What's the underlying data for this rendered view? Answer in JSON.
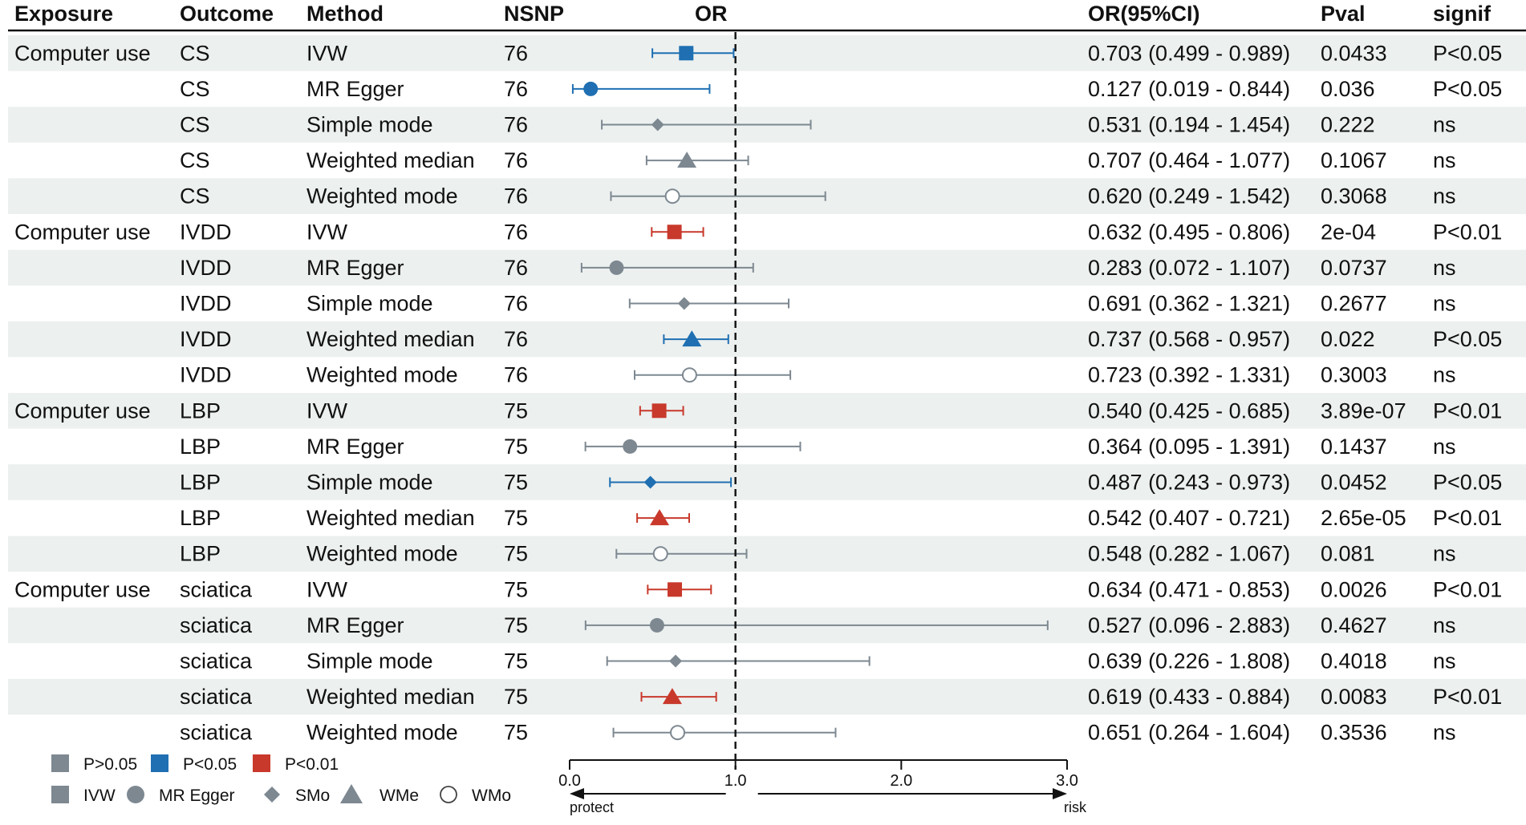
{
  "chart_data": {
    "type": "forest",
    "columns": [
      "Exposure",
      "Outcome",
      "Method",
      "NSNP",
      "OR",
      "OR(95%CI)",
      "Pval",
      "signif"
    ],
    "rows": [
      {
        "exposure": "Computer use",
        "outcome": "CS",
        "method": "IVW",
        "nsnp": "76",
        "or": 0.703,
        "lo": 0.499,
        "hi": 0.989,
        "ci_text": "0.703 (0.499 - 0.989)",
        "pval": "0.0433",
        "signif": "P<0.05",
        "sig_class": "p05",
        "shape": "square"
      },
      {
        "exposure": "",
        "outcome": "CS",
        "method": "MR Egger",
        "nsnp": "76",
        "or": 0.127,
        "lo": 0.019,
        "hi": 0.844,
        "ci_text": "0.127 (0.019 - 0.844)",
        "pval": "0.036",
        "signif": "P<0.05",
        "sig_class": "p05",
        "shape": "circle"
      },
      {
        "exposure": "",
        "outcome": "CS",
        "method": "Simple mode",
        "nsnp": "76",
        "or": 0.531,
        "lo": 0.194,
        "hi": 1.454,
        "ci_text": "0.531 (0.194 - 1.454)",
        "pval": "0.222",
        "signif": "ns",
        "sig_class": "ns",
        "shape": "diamond"
      },
      {
        "exposure": "",
        "outcome": "CS",
        "method": "Weighted median",
        "nsnp": "76",
        "or": 0.707,
        "lo": 0.464,
        "hi": 1.077,
        "ci_text": "0.707 (0.464 - 1.077)",
        "pval": "0.1067",
        "signif": "ns",
        "sig_class": "ns",
        "shape": "triangle"
      },
      {
        "exposure": "",
        "outcome": "CS",
        "method": "Weighted mode",
        "nsnp": "76",
        "or": 0.62,
        "lo": 0.249,
        "hi": 1.542,
        "ci_text": "0.620 (0.249 - 1.542)",
        "pval": "0.3068",
        "signif": "ns",
        "sig_class": "ns",
        "shape": "open-circle"
      },
      {
        "exposure": "Computer use",
        "outcome": "IVDD",
        "method": "IVW",
        "nsnp": "76",
        "or": 0.632,
        "lo": 0.495,
        "hi": 0.806,
        "ci_text": "0.632 (0.495 - 0.806)",
        "pval": "2e-04",
        "signif": "P<0.01",
        "sig_class": "p01",
        "shape": "square"
      },
      {
        "exposure": "",
        "outcome": "IVDD",
        "method": "MR Egger",
        "nsnp": "76",
        "or": 0.283,
        "lo": 0.072,
        "hi": 1.107,
        "ci_text": "0.283 (0.072 - 1.107)",
        "pval": "0.0737",
        "signif": "ns",
        "sig_class": "ns",
        "shape": "circle"
      },
      {
        "exposure": "",
        "outcome": "IVDD",
        "method": "Simple mode",
        "nsnp": "76",
        "or": 0.691,
        "lo": 0.362,
        "hi": 1.321,
        "ci_text": "0.691 (0.362 - 1.321)",
        "pval": "0.2677",
        "signif": "ns",
        "sig_class": "ns",
        "shape": "diamond"
      },
      {
        "exposure": "",
        "outcome": "IVDD",
        "method": "Weighted median",
        "nsnp": "76",
        "or": 0.737,
        "lo": 0.568,
        "hi": 0.957,
        "ci_text": "0.737 (0.568 - 0.957)",
        "pval": "0.022",
        "signif": "P<0.05",
        "sig_class": "p05",
        "shape": "triangle"
      },
      {
        "exposure": "",
        "outcome": "IVDD",
        "method": "Weighted mode",
        "nsnp": "76",
        "or": 0.723,
        "lo": 0.392,
        "hi": 1.331,
        "ci_text": "0.723 (0.392 - 1.331)",
        "pval": "0.3003",
        "signif": "ns",
        "sig_class": "ns",
        "shape": "open-circle"
      },
      {
        "exposure": "Computer use",
        "outcome": "LBP",
        "method": "IVW",
        "nsnp": "75",
        "or": 0.54,
        "lo": 0.425,
        "hi": 0.685,
        "ci_text": "0.540 (0.425 - 0.685)",
        "pval": "3.89e-07",
        "signif": "P<0.01",
        "sig_class": "p01",
        "shape": "square"
      },
      {
        "exposure": "",
        "outcome": "LBP",
        "method": "MR Egger",
        "nsnp": "75",
        "or": 0.364,
        "lo": 0.095,
        "hi": 1.391,
        "ci_text": "0.364 (0.095 - 1.391)",
        "pval": "0.1437",
        "signif": "ns",
        "sig_class": "ns",
        "shape": "circle"
      },
      {
        "exposure": "",
        "outcome": "LBP",
        "method": "Simple mode",
        "nsnp": "75",
        "or": 0.487,
        "lo": 0.243,
        "hi": 0.973,
        "ci_text": "0.487 (0.243 - 0.973)",
        "pval": "0.0452",
        "signif": "P<0.05",
        "sig_class": "p05",
        "shape": "diamond"
      },
      {
        "exposure": "",
        "outcome": "LBP",
        "method": "Weighted median",
        "nsnp": "75",
        "or": 0.542,
        "lo": 0.407,
        "hi": 0.721,
        "ci_text": "0.542 (0.407 - 0.721)",
        "pval": "2.65e-05",
        "signif": "P<0.01",
        "sig_class": "p01",
        "shape": "triangle"
      },
      {
        "exposure": "",
        "outcome": "LBP",
        "method": "Weighted mode",
        "nsnp": "75",
        "or": 0.548,
        "lo": 0.282,
        "hi": 1.067,
        "ci_text": "0.548 (0.282 - 1.067)",
        "pval": "0.081",
        "signif": "ns",
        "sig_class": "ns",
        "shape": "open-circle"
      },
      {
        "exposure": "Computer use",
        "outcome": "sciatica",
        "method": "IVW",
        "nsnp": "75",
        "or": 0.634,
        "lo": 0.471,
        "hi": 0.853,
        "ci_text": "0.634 (0.471 - 0.853)",
        "pval": "0.0026",
        "signif": "P<0.01",
        "sig_class": "p01",
        "shape": "square"
      },
      {
        "exposure": "",
        "outcome": "sciatica",
        "method": "MR Egger",
        "nsnp": "75",
        "or": 0.527,
        "lo": 0.096,
        "hi": 2.883,
        "ci_text": "0.527 (0.096 - 2.883)",
        "pval": "0.4627",
        "signif": "ns",
        "sig_class": "ns",
        "shape": "circle"
      },
      {
        "exposure": "",
        "outcome": "sciatica",
        "method": "Simple mode",
        "nsnp": "75",
        "or": 0.639,
        "lo": 0.226,
        "hi": 1.808,
        "ci_text": "0.639 (0.226 - 1.808)",
        "pval": "0.4018",
        "signif": "ns",
        "sig_class": "ns",
        "shape": "diamond"
      },
      {
        "exposure": "",
        "outcome": "sciatica",
        "method": "Weighted median",
        "nsnp": "75",
        "or": 0.619,
        "lo": 0.433,
        "hi": 0.884,
        "ci_text": "0.619 (0.433 - 0.884)",
        "pval": "0.0083",
        "signif": "P<0.01",
        "sig_class": "p01",
        "shape": "triangle"
      },
      {
        "exposure": "",
        "outcome": "sciatica",
        "method": "Weighted mode",
        "nsnp": "75",
        "or": 0.651,
        "lo": 0.264,
        "hi": 1.604,
        "ci_text": "0.651 (0.264 - 1.604)",
        "pval": "0.3536",
        "signif": "ns",
        "sig_class": "ns",
        "shape": "open-circle"
      }
    ],
    "x_axis": {
      "min": 0.0,
      "max": 3.0,
      "ticks": [
        "0.0",
        "1.0",
        "2.0",
        "3.0"
      ],
      "ref_line": 1.0
    },
    "axis_labels": {
      "left": "protect",
      "right": "risk"
    },
    "legend": {
      "significance": [
        {
          "label": "P>0.05",
          "key": "ns"
        },
        {
          "label": "P<0.05",
          "key": "p05"
        },
        {
          "label": "P<0.01",
          "key": "p01"
        }
      ],
      "shapes": [
        {
          "label": "IVW",
          "shape": "square"
        },
        {
          "label": "MR Egger",
          "shape": "circle"
        },
        {
          "label": "SMo",
          "shape": "diamond"
        },
        {
          "label": "WMe",
          "shape": "triangle"
        },
        {
          "label": "WMo",
          "shape": "open-circle"
        }
      ]
    },
    "colors": {
      "ns": "#7d8891",
      "p05": "#1f6fb2",
      "p01": "#c8392b",
      "stripe": "#ecf0ef"
    }
  }
}
